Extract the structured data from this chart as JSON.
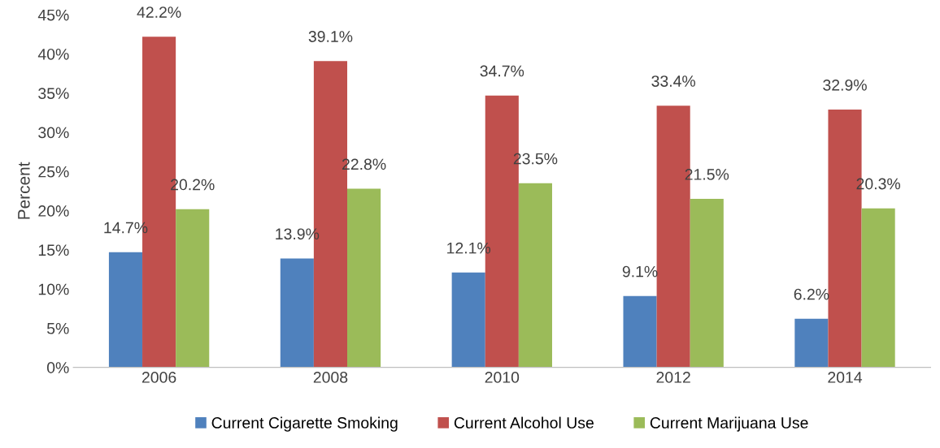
{
  "chart_data": {
    "type": "bar",
    "ylabel": "Percent",
    "categories": [
      "2006",
      "2008",
      "2010",
      "2012",
      "2014"
    ],
    "series": [
      {
        "name": "Current Cigarette Smoking",
        "color": "#4f81bd",
        "values": [
          14.7,
          13.9,
          12.1,
          9.1,
          6.2
        ],
        "value_labels": [
          "14.7%",
          "13.9%",
          "12.1%",
          "9.1%",
          "6.2%"
        ]
      },
      {
        "name": "Current Alcohol Use",
        "color": "#c0504d",
        "values": [
          42.2,
          39.1,
          34.7,
          33.4,
          32.9
        ],
        "value_labels": [
          "42.2%",
          "39.1%",
          "34.7%",
          "33.4%",
          "32.9%"
        ]
      },
      {
        "name": "Current Marijuana Use",
        "color": "#9bbb59",
        "values": [
          20.2,
          22.8,
          23.5,
          21.5,
          20.3
        ],
        "value_labels": [
          "20.2%",
          "22.8%",
          "23.5%",
          "21.5%",
          "20.3%"
        ]
      }
    ],
    "ylim": [
      0,
      45
    ],
    "yticks": [
      {
        "value": 0,
        "label": "0%"
      },
      {
        "value": 5,
        "label": "5%"
      },
      {
        "value": 10,
        "label": "10%"
      },
      {
        "value": 15,
        "label": "15%"
      },
      {
        "value": 20,
        "label": "20%"
      },
      {
        "value": 25,
        "label": "25%"
      },
      {
        "value": 30,
        "label": "30%"
      },
      {
        "value": 35,
        "label": "35%"
      },
      {
        "value": 40,
        "label": "40%"
      },
      {
        "value": 45,
        "label": "45%"
      }
    ],
    "grid": false,
    "legend": "bottom"
  }
}
